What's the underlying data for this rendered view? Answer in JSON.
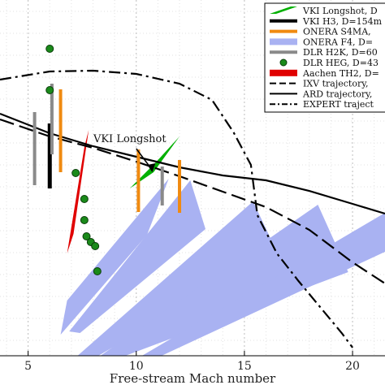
{
  "chart_data": {
    "type": "line",
    "title": "",
    "xlabel": "Free-stream Mach number",
    "ylabel": "",
    "xlim": [
      3.7,
      21.5
    ],
    "grid": true,
    "x_ticks": [
      "5",
      "10",
      "15",
      "20"
    ],
    "legend_position": "top-right",
    "legend_entries": [
      {
        "label": "VKI Longshot, D",
        "color": "#00b000",
        "marker": "patch"
      },
      {
        "label": "VKI H3, D=154m",
        "color": "#000000",
        "marker": "line"
      },
      {
        "label": "ONERA S4MA,",
        "color": "#f08a10",
        "marker": "line"
      },
      {
        "label": "ONERA F4, D=",
        "color": "#a9b2f2",
        "marker": "patch"
      },
      {
        "label": "DLR H2K, D=60",
        "color": "#8a8a8a",
        "marker": "line"
      },
      {
        "label": "DLR HEG, D=43",
        "color": "#1f7a1f",
        "marker": "circle"
      },
      {
        "label": "Aachen TH2, D=",
        "color": "#e00000",
        "marker": "patch"
      },
      {
        "label": "IXV trajectory,",
        "color": "#000000",
        "marker": "dashed"
      },
      {
        "label": "ARD trajectory,",
        "color": "#000000",
        "marker": "solid"
      },
      {
        "label": "EXPERT traject",
        "color": "#000000",
        "marker": "dashdot"
      }
    ],
    "annotations": [
      {
        "text": "VKI Longshot",
        "x": 9.7,
        "y": 303
      }
    ],
    "series": [
      {
        "name": "IXV trajectory",
        "style": "dashed",
        "color": "#000000",
        "x": [
          3.7,
          6,
          8,
          10,
          12,
          14,
          16,
          18,
          20,
          21.5
        ],
        "y": [
          147,
          168,
          182,
          199,
          217,
          236,
          255,
          283,
          323,
          349
        ]
      },
      {
        "name": "ARD trajectory",
        "style": "solid",
        "color": "#000000",
        "x": [
          3.7,
          6,
          8,
          10,
          12,
          14,
          16,
          18,
          20,
          21.5
        ],
        "y": [
          140,
          164,
          180,
          193,
          206,
          216,
          222,
          235,
          251,
          263
        ]
      },
      {
        "name": "EXPERT trajectory",
        "style": "dashdot",
        "color": "#000000",
        "x": [
          3.7,
          6,
          8,
          10,
          12,
          13.5,
          14.5,
          15.3,
          15.6,
          16.5,
          17.5,
          18.5,
          19.5,
          20
        ],
        "y": [
          98,
          88,
          87,
          91,
          103,
          123,
          163,
          203,
          265,
          312,
          346,
          378,
          410,
          428
        ]
      },
      {
        "name": "VKI H3",
        "style": "segment",
        "color": "#000000",
        "width": 5,
        "segments": [
          {
            "x": 6.0,
            "y1": 152,
            "y2": 232
          }
        ]
      },
      {
        "name": "DLR H2K",
        "style": "segment",
        "color": "#8a8a8a",
        "width": 4,
        "segments": [
          {
            "x": 5.3,
            "y1": 138,
            "y2": 228
          },
          {
            "x": 6.1,
            "y1": 103,
            "y2": 190
          },
          {
            "x": 11.2,
            "y1": 205,
            "y2": 253
          }
        ]
      },
      {
        "name": "ONERA S4MA",
        "style": "segment",
        "color": "#f08a10",
        "width": 4,
        "segments": [
          {
            "x": 6.5,
            "y1": 110,
            "y2": 212
          },
          {
            "x": 10.1,
            "y1": 184,
            "y2": 261
          },
          {
            "x": 12.0,
            "y1": 197,
            "y2": 262
          }
        ]
      },
      {
        "name": "DLR HEG",
        "style": "points",
        "color": "#1f7a1f",
        "x": [
          6.0,
          6.0,
          7.2,
          7.6,
          7.6,
          7.7,
          7.9,
          8.1,
          8.2
        ],
        "y": [
          60,
          111,
          213,
          245,
          271,
          291,
          298,
          303,
          334
        ]
      },
      {
        "name": "VKI Longshot",
        "style": "polygon",
        "color": "#00b000",
        "points": [
          [
            9.7,
            232
          ],
          [
            10.9,
            200
          ],
          [
            12.0,
            168
          ],
          [
            10.8,
            212
          ]
        ]
      },
      {
        "name": "Aachen TH2",
        "style": "polygon",
        "color": "#e00000",
        "points": [
          [
            6.8,
            312
          ],
          [
            7.6,
            181
          ],
          [
            7.8,
            160
          ],
          [
            7.1,
            288
          ]
        ]
      },
      {
        "name": "ONERA F4",
        "style": "polygon",
        "color": "#a9b2f2",
        "polygons": [
          [
            [
              6.8,
              370
            ],
            [
              6.5,
              412
            ],
            [
              10.5,
              289
            ],
            [
              11.5,
              220
            ]
          ],
          [
            [
              6.9,
              408
            ],
            [
              7.4,
              410
            ],
            [
              13.2,
              282
            ],
            [
              12.5,
              222
            ]
          ],
          [
            [
              7.2,
              440
            ],
            [
              7.6,
              448
            ],
            [
              16.5,
              310
            ],
            [
              15.4,
              248
            ]
          ],
          [
            [
              7.8,
              448
            ],
            [
              8.3,
              450
            ],
            [
              19.8,
              335
            ],
            [
              18.4,
              252
            ]
          ],
          [
            [
              9.5,
              450
            ],
            [
              10.2,
              450
            ],
            [
              21.5,
              310
            ],
            [
              21.5,
              262
            ]
          ]
        ]
      }
    ]
  }
}
